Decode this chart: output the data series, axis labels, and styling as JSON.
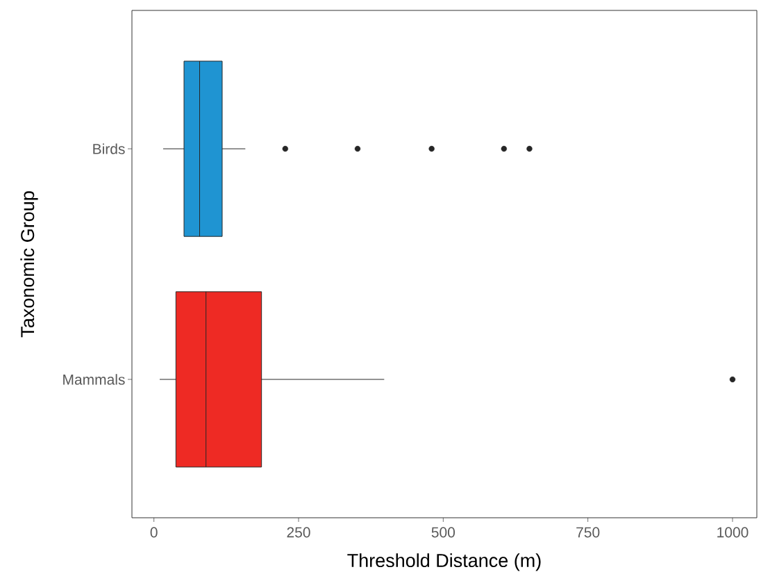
{
  "chart_data": {
    "type": "box",
    "orientation": "horizontal",
    "xlabel": "Threshold Distance (m)",
    "ylabel": "Taxonomic Group",
    "categories": [
      "Birds",
      "Mammals"
    ],
    "colors": [
      "#1f94d2",
      "#ee2a24"
    ],
    "boxes": [
      {
        "low": 16,
        "q1": 52,
        "median": 79,
        "q3": 118,
        "high": 158,
        "outliers": [
          227,
          352,
          480,
          605,
          649
        ]
      },
      {
        "low": 10,
        "q1": 38,
        "median": 90,
        "q3": 186,
        "high": 398,
        "outliers": [
          1000
        ]
      }
    ],
    "xlim": [
      -38,
      1042
    ],
    "xticks": [
      0,
      250,
      500,
      750,
      1000
    ],
    "grid": false
  }
}
